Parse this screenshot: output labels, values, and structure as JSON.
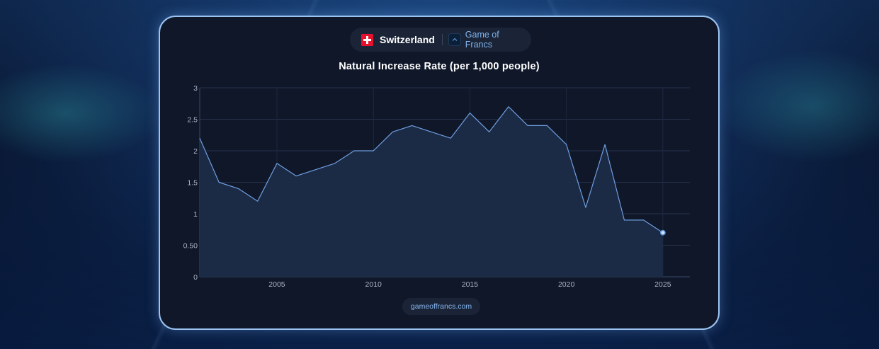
{
  "header": {
    "country": "Switzerland",
    "brand": "Game of Francs"
  },
  "footer": {
    "site": "gameoffrancs.com"
  },
  "colors": {
    "accent": "#7fb2ee",
    "line": "#6f9fe0",
    "area": "#1c2b47",
    "card_bg": "#0f1729",
    "card_border": "#9cc4f2",
    "flag_red": "#e8112d"
  },
  "chart_data": {
    "type": "area",
    "title": "Natural Increase Rate (per 1,000 people)",
    "xlabel": "",
    "ylabel": "",
    "x": [
      2001,
      2002,
      2003,
      2004,
      2005,
      2006,
      2007,
      2008,
      2009,
      2010,
      2011,
      2012,
      2013,
      2014,
      2015,
      2016,
      2017,
      2018,
      2019,
      2020,
      2021,
      2022,
      2023,
      2024,
      2025
    ],
    "values": [
      2.2,
      1.5,
      1.4,
      1.2,
      1.8,
      1.6,
      1.7,
      1.8,
      2.0,
      2.0,
      2.3,
      2.4,
      2.3,
      2.2,
      2.6,
      2.3,
      2.7,
      2.4,
      2.4,
      2.1,
      1.1,
      2.1,
      0.9,
      0.9,
      0.7
    ],
    "xticks": [
      2005,
      2010,
      2015,
      2020,
      2025
    ],
    "yticks": [
      0,
      0.5,
      1,
      1.5,
      2,
      2.5,
      3
    ],
    "ytick_labels": [
      "0",
      "0.50",
      "1",
      "1.5",
      "2",
      "2.5",
      "3"
    ],
    "xlim": [
      2001,
      2026.4
    ],
    "ylim": [
      0,
      3
    ],
    "grid": true,
    "legend": "none",
    "marker_on_last_point": true
  }
}
